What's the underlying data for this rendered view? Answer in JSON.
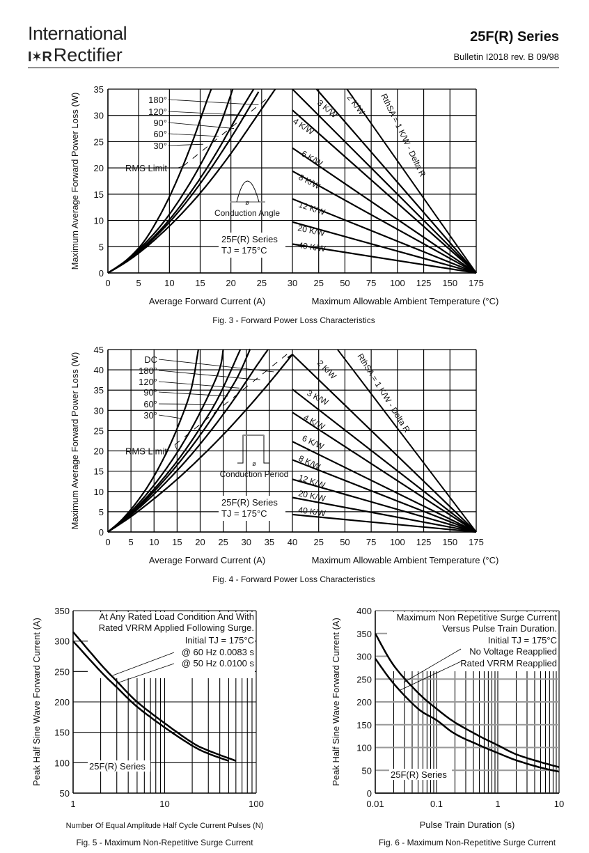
{
  "header": {
    "logo_line1": "International",
    "logo_mark": "I✶R",
    "logo_line2": "Rectifier",
    "series_title": "25F(R)  Series",
    "bulletin": "Bulletin I2018  rev. B  09/98"
  },
  "chart_data": [
    {
      "id": "fig3",
      "type": "line",
      "title": "Fig. 3 - Forward Power Loss Characteristics",
      "left_panel": {
        "xlabel": "Average Forward Current (A)",
        "ylabel": "Maximum Average Forward Power Loss (W)",
        "xlim": [
          0,
          30
        ],
        "ylim": [
          0,
          35
        ],
        "xticks": [
          "0",
          "5",
          "10",
          "15",
          "20",
          "25"
        ],
        "yticks": [
          "0",
          "5",
          "10",
          "15",
          "20",
          "25",
          "30",
          "35"
        ],
        "series": [
          {
            "name": "30°",
            "x": [
              0,
              2,
              4,
              6,
              8,
              10,
              12,
              14,
              16,
              16.8
            ],
            "y": [
              0,
              1.5,
              3.5,
              6.2,
              10,
              14.5,
              19.8,
              25.8,
              32.5,
              35
            ]
          },
          {
            "name": "60°",
            "x": [
              0,
              3,
              6,
              9,
              12,
              15,
              18,
              20.3
            ],
            "y": [
              0,
              2.4,
              5.6,
              9.6,
              14.6,
              20.5,
              27.5,
              35
            ]
          },
          {
            "name": "90°",
            "x": [
              0,
              3,
              6,
              9,
              12,
              15,
              18,
              21,
              23.7
            ],
            "y": [
              0,
              2.3,
              5.2,
              8.8,
              13.1,
              18,
              23.6,
              29.8,
              35
            ]
          },
          {
            "name": "120°",
            "x": [
              0,
              3,
              6,
              9,
              12,
              15,
              18,
              21,
              24.5
            ],
            "y": [
              0,
              2.2,
              5,
              8.4,
              12.4,
              17,
              22.1,
              27.6,
              34.5
            ]
          },
          {
            "name": "180°",
            "x": [
              0,
              3,
              6,
              9,
              12,
              15,
              18,
              21,
              24,
              27.2
            ],
            "y": [
              0,
              2.1,
              4.7,
              7.8,
              11.3,
              15.2,
              19.6,
              24.4,
              29.5,
              35
            ]
          }
        ],
        "rms_limit": {
          "label": "RMS Limit",
          "x": [
            12.2,
            26.5
          ],
          "y": [
            20.3,
            33.8
          ]
        },
        "annotations": [
          "Conduction Angle",
          "25F(R) Series",
          "TJ = 175°C"
        ],
        "inset_symbol": "ø"
      },
      "right_panel": {
        "xlabel": "Maximum Allowable Ambient Temperature (°C)",
        "xticks": [
          "30",
          "25",
          "50",
          "75",
          "100",
          "125",
          "150",
          "175"
        ],
        "xlim": [
          0,
          175
        ],
        "heatsink_lines": [
          {
            "label": "RthSA = 1 K/W - Delta R",
            "start_temp": 52,
            "start_power": 35
          },
          {
            "label": "2 K/W",
            "start_temp": 23,
            "start_power": 35
          },
          {
            "label": "3 K/W",
            "start_temp": 0,
            "start_power": 35
          },
          {
            "label": "4 K/W",
            "start_temp": 0,
            "start_power": 31
          },
          {
            "label": "6 K/W",
            "start_temp": 0,
            "start_power": 23.8
          },
          {
            "label": "8 K/W",
            "start_temp": 0,
            "start_power": 19.4
          },
          {
            "label": "12 K/W",
            "start_temp": 0,
            "start_power": 14.1
          },
          {
            "label": "20 K/W",
            "start_temp": 0,
            "start_power": 9.7
          },
          {
            "label": "40 K/W",
            "start_temp": 0,
            "start_power": 5.5
          }
        ],
        "end_temp": 175
      }
    },
    {
      "id": "fig4",
      "type": "line",
      "title": "Fig. 4 - Forward Power Loss Characteristics",
      "left_panel": {
        "xlabel": "Average Forward Current (A)",
        "ylabel": "Maximum Average Forward Power Loss (W)",
        "xlim": [
          0,
          40
        ],
        "ylim": [
          0,
          45
        ],
        "xticks": [
          "0",
          "5",
          "10",
          "15",
          "20",
          "25",
          "30",
          "35"
        ],
        "yticks": [
          "0",
          "5",
          "10",
          "15",
          "20",
          "25",
          "30",
          "35",
          "40",
          "45"
        ],
        "series": [
          {
            "name": "30°",
            "x": [
              0,
              3,
              6,
              9,
              12,
              15,
              18,
              19.6
            ],
            "y": [
              0,
              3,
              7,
              11.9,
              18,
              25.5,
              35,
              45
            ]
          },
          {
            "name": "60°",
            "x": [
              0,
              4,
              8,
              12,
              16,
              20,
              24,
              25
            ],
            "y": [
              0,
              3.9,
              8.8,
              14.6,
              21.4,
              29.5,
              39.5,
              45
            ]
          },
          {
            "name": "90°",
            "x": [
              0,
              4,
              8,
              12,
              16,
              20,
              24,
              28.7
            ],
            "y": [
              0,
              3.6,
              8.1,
              13.2,
              19,
              25.7,
              33.3,
              45
            ]
          },
          {
            "name": "120°",
            "x": [
              0,
              4,
              8,
              12,
              16,
              20,
              24,
              28,
              30.8
            ],
            "y": [
              0,
              3.5,
              7.7,
              12.5,
              17.9,
              23.9,
              30.6,
              38,
              45
            ]
          },
          {
            "name": "180°",
            "x": [
              0,
              4,
              8,
              12,
              16,
              20,
              24,
              28,
              32,
              34.7
            ],
            "y": [
              0,
              3.3,
              7.2,
              11.6,
              16.4,
              21.7,
              27.5,
              33.8,
              40.6,
              45
            ]
          },
          {
            "name": "DC",
            "x": [
              0,
              5,
              10,
              15,
              20,
              25,
              30,
              35,
              40
            ],
            "y": [
              0,
              3.8,
              8.2,
              13,
              18.3,
              24,
              30.2,
              36.8,
              43.8
            ]
          }
        ],
        "rms_limit": {
          "label": "RMS Limit",
          "x": [
            14.5,
            39
          ],
          "y": [
            21.5,
            44
          ]
        },
        "annotations": [
          "Conduction Period",
          "25F(R) Series",
          "TJ = 175°C"
        ],
        "inset_symbol": "ø"
      },
      "right_panel": {
        "xlabel": "Maximum Allowable Ambient Temperature (°C)",
        "xticks": [
          "40",
          "25",
          "50",
          "75",
          "100",
          "125",
          "150",
          "175"
        ],
        "xlim": [
          0,
          175
        ],
        "heatsink_lines": [
          {
            "label": "RthSA = 1 K/W - Delta R",
            "start_temp": 43,
            "start_power": 45
          },
          {
            "label": "2 K/W",
            "start_temp": 0,
            "start_power": 43.8
          },
          {
            "label": "3 K/W",
            "start_temp": 0,
            "start_power": 35.2
          },
          {
            "label": "4 K/W",
            "start_temp": 0,
            "start_power": 29.5
          },
          {
            "label": "6 K/W",
            "start_temp": 0,
            "start_power": 22.3
          },
          {
            "label": "8 K/W",
            "start_temp": 0,
            "start_power": 17.8
          },
          {
            "label": "12 K/W",
            "start_temp": 0,
            "start_power": 13
          },
          {
            "label": "20 K/W",
            "start_temp": 0,
            "start_power": 8.5
          },
          {
            "label": "40 K/W",
            "start_temp": 0,
            "start_power": 4.3
          }
        ],
        "end_temp": 175
      }
    },
    {
      "id": "fig5",
      "type": "line",
      "title": "Fig. 5 - Maximum Non-Repetitive Surge Current",
      "xlabel": "Number Of Equal Amplitude Half Cycle Current Pulses (N)",
      "ylabel": "Peak Half Sine Wave Forward Current (A)",
      "xscale": "log",
      "xlim": [
        1,
        100
      ],
      "ylim": [
        50,
        350
      ],
      "xticks": [
        "1",
        "10",
        "100"
      ],
      "yticks": [
        "50",
        "100",
        "150",
        "200",
        "250",
        "300",
        "350"
      ],
      "series": [
        {
          "name": "@ 60 Hz 0.0083 s",
          "x": [
            1,
            2,
            3,
            5,
            10,
            20,
            30,
            60
          ],
          "y": [
            315,
            262,
            234,
            200,
            165,
            133,
            120,
            103
          ]
        },
        {
          "name": "@ 50 Hz 0.0100 s",
          "x": [
            1,
            2,
            3,
            5,
            10,
            20,
            30,
            50
          ],
          "y": [
            300,
            250,
            224,
            192,
            158,
            128,
            115,
            103
          ]
        }
      ],
      "annotations": [
        "At Any Rated Load Condition And With",
        "Rated VRRM Applied Following Surge.",
        "Initial TJ = 175°C",
        "25F(R) Series"
      ]
    },
    {
      "id": "fig6",
      "type": "line",
      "title": "Fig. 6 - Maximum Non-Repetitive Surge Current",
      "xlabel": "Pulse Train Duration (s)",
      "ylabel": "Peak Half Sine Wave Forward Current (A)",
      "xscale": "log",
      "xlim": [
        0.01,
        10
      ],
      "ylim": [
        0,
        400
      ],
      "xticks": [
        "0.01",
        "0.1",
        "1",
        "10"
      ],
      "yticks": [
        "0",
        "50",
        "100",
        "150",
        "200",
        "250",
        "300",
        "350",
        "400"
      ],
      "series": [
        {
          "name": "No Voltage Reapplied",
          "x": [
            0.01,
            0.02,
            0.05,
            0.1,
            0.2,
            0.5,
            1,
            2,
            5,
            10
          ],
          "y": [
            350,
            280,
            220,
            185,
            155,
            125,
            105,
            85,
            68,
            57
          ]
        },
        {
          "name": "Rated VRRM Reapplied",
          "x": [
            0.01,
            0.02,
            0.05,
            0.1,
            0.2,
            0.5,
            1,
            2,
            5,
            10
          ],
          "y": [
            295,
            240,
            185,
            160,
            130,
            105,
            88,
            72,
            56,
            47
          ]
        }
      ],
      "annotations": [
        "Maximum Non Repetitive Surge Current",
        "Versus Pulse Train Duration.",
        "Initial TJ = 175°C",
        "25F(R) Series"
      ]
    }
  ]
}
